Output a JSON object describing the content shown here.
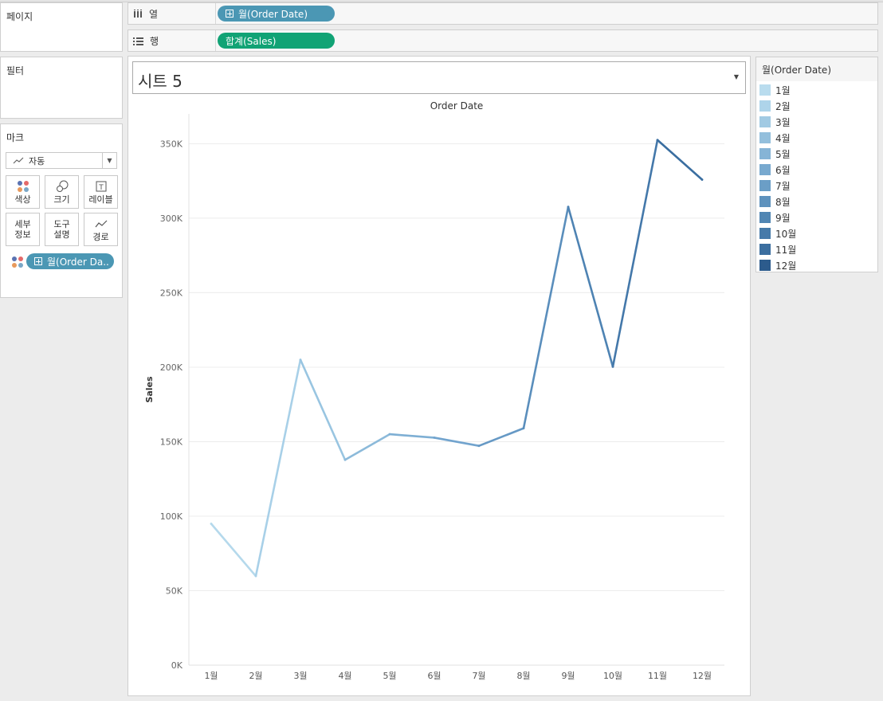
{
  "pages_panel": {
    "title": "페이지"
  },
  "filters_panel": {
    "title": "필터"
  },
  "marks_panel": {
    "title": "마크",
    "mark_type": "자동",
    "buttons": [
      {
        "label": "색상",
        "icon": "color-icon"
      },
      {
        "label": "크기",
        "icon": "size-icon"
      },
      {
        "label": "레이블",
        "icon": "label-icon"
      },
      {
        "label": "세부\n정보",
        "icon": "detail-icon"
      },
      {
        "label": "도구\n설명",
        "icon": "tooltip-icon"
      },
      {
        "label": "경로",
        "icon": "path-icon"
      }
    ],
    "color_pill": "월(Order Da.."
  },
  "columns_shelf": {
    "label": "열",
    "pill": "월(Order Date)",
    "pill_color": "#4b97b4"
  },
  "rows_shelf": {
    "label": "행",
    "pill": "합계(Sales)",
    "pill_color": "#11a375"
  },
  "sheet": {
    "title": "시트 5"
  },
  "chart_data": {
    "type": "line",
    "title": "Order Date",
    "xlabel": "",
    "ylabel": "Sales",
    "ylim": [
      0,
      370000
    ],
    "yticks": [
      0,
      50000,
      100000,
      150000,
      200000,
      250000,
      300000,
      350000
    ],
    "ytick_labels": [
      "0K",
      "50K",
      "100K",
      "150K",
      "200K",
      "250K",
      "300K",
      "350K"
    ],
    "categories": [
      "1월",
      "2월",
      "3월",
      "4월",
      "5월",
      "6월",
      "7월",
      "8월",
      "9월",
      "10월",
      "11월",
      "12월"
    ],
    "values": [
      94900,
      59800,
      205000,
      137800,
      155000,
      152700,
      147200,
      159000,
      307600,
      200300,
      352500,
      325900
    ],
    "segment_colors": [
      "#b5d9ec",
      "#a8d0e8",
      "#99c5e1",
      "#8cbada",
      "#7eafd4",
      "#72a4ce",
      "#6699c5",
      "#5a8ebc",
      "#4e83b3",
      "#4478aa",
      "#3a6ea0",
      "#2e5f8f"
    ],
    "grid": true
  },
  "legend": {
    "title": "월(Order Date)",
    "items": [
      {
        "label": "1월",
        "color": "#b9dcee"
      },
      {
        "label": "2월",
        "color": "#aed4ea"
      },
      {
        "label": "3월",
        "color": "#a1cae3"
      },
      {
        "label": "4월",
        "color": "#93bfdc"
      },
      {
        "label": "5월",
        "color": "#86b4d6"
      },
      {
        "label": "6월",
        "color": "#78a9cf"
      },
      {
        "label": "7월",
        "color": "#6b9ec6"
      },
      {
        "label": "8월",
        "color": "#5e92bd"
      },
      {
        "label": "9월",
        "color": "#5186b3"
      },
      {
        "label": "10월",
        "color": "#467aa9"
      },
      {
        "label": "11월",
        "color": "#3b6e9f"
      },
      {
        "label": "12월",
        "color": "#2c5b8c"
      }
    ]
  }
}
